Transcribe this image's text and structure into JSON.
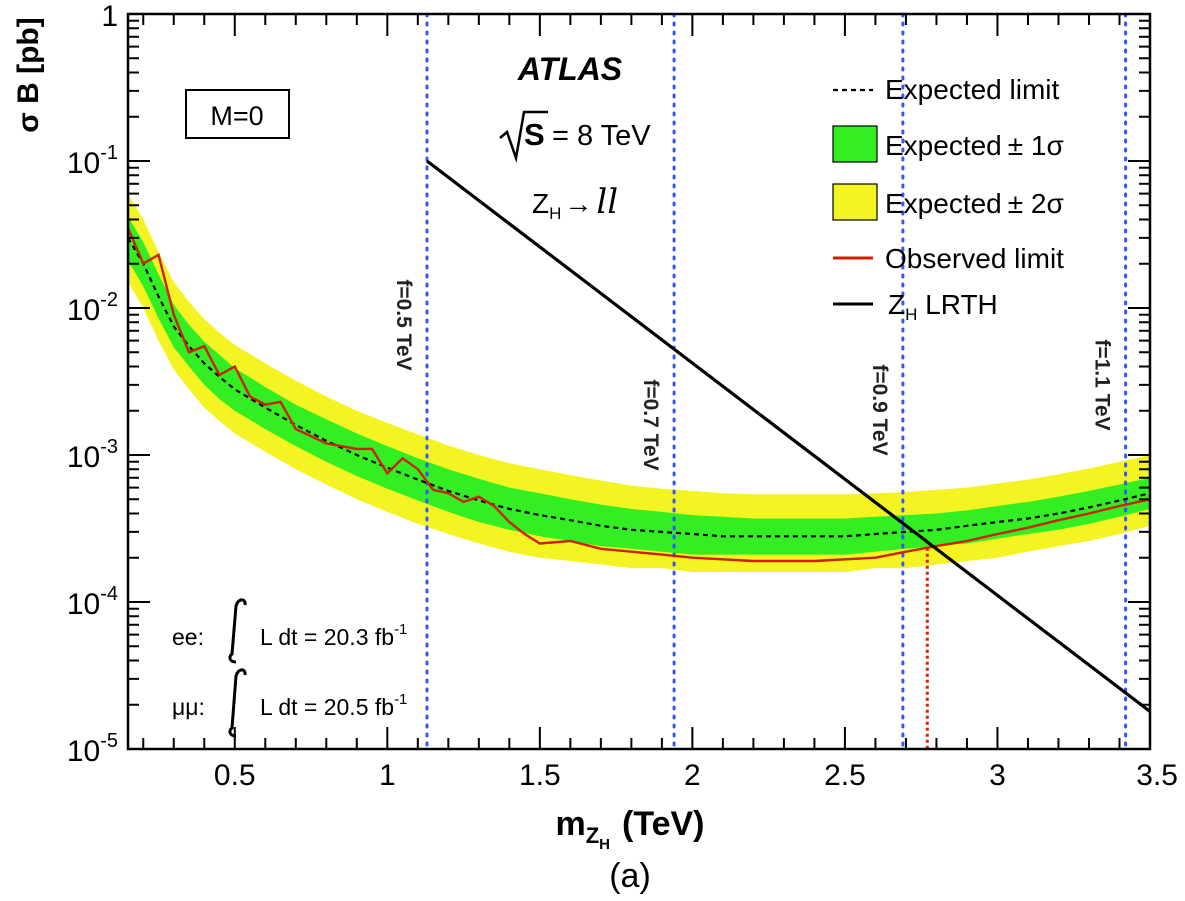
{
  "chart_data": {
    "type": "line",
    "title": "ATLAS",
    "energy_label": "S",
    "energy_value": "= 8 TeV",
    "process_prefix": "Z",
    "process_sub": "H",
    "process_arrow": "→",
    "process_final": "ll",
    "model_box": "M=0",
    "xlabel_main": "m",
    "xlabel_sub1": "Z",
    "xlabel_sub2": "H",
    "xlabel_unit": "(TeV)",
    "ylabel": "σ B [pb]",
    "caption": "(a)",
    "xlim": [
      0.15,
      3.5
    ],
    "ylim": [
      1e-05,
      1
    ],
    "x_ticks": [
      {
        "value": 0.5,
        "label": "0.5"
      },
      {
        "value": 1.0,
        "label": "1"
      },
      {
        "value": 1.5,
        "label": "1.5"
      },
      {
        "value": 2.0,
        "label": "2"
      },
      {
        "value": 2.5,
        "label": "2.5"
      },
      {
        "value": 3.0,
        "label": "3"
      },
      {
        "value": 3.5,
        "label": "3.5"
      }
    ],
    "y_ticks": [
      {
        "value": 1,
        "base": "1",
        "exp": ""
      },
      {
        "value": 0.1,
        "base": "10",
        "exp": "-1"
      },
      {
        "value": 0.01,
        "base": "10",
        "exp": "-2"
      },
      {
        "value": 0.001,
        "base": "10",
        "exp": "-3"
      },
      {
        "value": 0.0001,
        "base": "10",
        "exp": "-4"
      },
      {
        "value": 1e-05,
        "base": "10",
        "exp": "-5"
      }
    ],
    "legend": {
      "expected": "Expected limit",
      "one_sigma_word": "Expected",
      "one_sigma_tail": "± 1σ",
      "two_sigma_word": "Expected",
      "two_sigma_tail": "± 2σ",
      "observed": "Observed limit",
      "theory_prefix": "Z",
      "theory_sub": "H",
      "theory_tail": " LRTH"
    },
    "luminosity": {
      "ee_label": "ee:",
      "ee_text": "L dt = 20.3 fb",
      "ee_exp": "-1",
      "mumu_label": "μμ:",
      "mumu_text": "L dt = 20.5 fb",
      "mumu_exp": "-1"
    },
    "f_lines": [
      {
        "x": 1.13,
        "label": "f=0.5 TeV"
      },
      {
        "x": 1.94,
        "label": "f=0.7 TeV"
      },
      {
        "x": 2.69,
        "label": "f=0.9 TeV"
      },
      {
        "x": 3.42,
        "label": "f=1.1 TeV"
      }
    ],
    "observed_crossing_x": 2.77,
    "colors": {
      "one_sigma": "#33ee22",
      "two_sigma": "#f4f422",
      "observed": "#cc2200",
      "expected": "#000000",
      "theory": "#000000",
      "f_lines": "#3355ff",
      "crossing": "#dd2200"
    },
    "x": [
      0.15,
      0.2,
      0.25,
      0.3,
      0.35,
      0.4,
      0.45,
      0.5,
      0.6,
      0.7,
      0.8,
      0.9,
      1.0,
      1.1,
      1.2,
      1.3,
      1.4,
      1.5,
      1.6,
      1.7,
      1.8,
      1.9,
      2.0,
      2.1,
      2.2,
      2.3,
      2.4,
      2.5,
      2.6,
      2.7,
      2.8,
      2.9,
      3.0,
      3.1,
      3.2,
      3.3,
      3.4,
      3.5
    ],
    "series": [
      {
        "name": "Expected limit",
        "values": [
          0.03,
          0.02,
          0.012,
          0.0075,
          0.0055,
          0.0042,
          0.0034,
          0.0028,
          0.0021,
          0.0016,
          0.00125,
          0.001,
          0.00082,
          0.00068,
          0.00057,
          0.00049,
          0.00043,
          0.00039,
          0.00036,
          0.00033,
          0.00031,
          0.0003,
          0.00029,
          0.00028,
          0.00028,
          0.00028,
          0.00028,
          0.00028,
          0.00029,
          0.0003,
          0.00031,
          0.00033,
          0.00035,
          0.00037,
          0.0004,
          0.00044,
          0.00049,
          0.00055
        ]
      },
      {
        "name": "Expected ±1σ lower",
        "values": [
          0.021,
          0.014,
          0.0085,
          0.0054,
          0.004,
          0.003,
          0.0024,
          0.002,
          0.0015,
          0.00115,
          0.0009,
          0.00072,
          0.00059,
          0.00049,
          0.00041,
          0.00035,
          0.00031,
          0.00028,
          0.00026,
          0.00024,
          0.00023,
          0.00022,
          0.00021,
          0.00021,
          0.00021,
          0.00021,
          0.00021,
          0.00021,
          0.00022,
          0.00023,
          0.00024,
          0.00025,
          0.00027,
          0.00029,
          0.00031,
          0.00034,
          0.00038,
          0.00043
        ]
      },
      {
        "name": "Expected ±1σ upper",
        "values": [
          0.042,
          0.028,
          0.017,
          0.0105,
          0.0077,
          0.0059,
          0.0048,
          0.0039,
          0.0029,
          0.0022,
          0.00175,
          0.0014,
          0.00115,
          0.00095,
          0.0008,
          0.00069,
          0.0006,
          0.00055,
          0.0005,
          0.00046,
          0.00043,
          0.00041,
          0.00039,
          0.00038,
          0.00037,
          0.00037,
          0.00037,
          0.00037,
          0.00038,
          0.00039,
          0.0004,
          0.00042,
          0.00045,
          0.00048,
          0.00052,
          0.00057,
          0.00063,
          0.0007
        ]
      },
      {
        "name": "Expected ±2σ lower",
        "values": [
          0.015,
          0.01,
          0.006,
          0.0038,
          0.0028,
          0.0021,
          0.0017,
          0.0014,
          0.00105,
          0.0008,
          0.00063,
          0.0005,
          0.00041,
          0.00034,
          0.00029,
          0.00025,
          0.00022,
          0.0002,
          0.00019,
          0.00018,
          0.00017,
          0.00017,
          0.00016,
          0.00016,
          0.00016,
          0.00016,
          0.00016,
          0.00016,
          0.00017,
          0.00017,
          0.00018,
          0.00019,
          0.0002,
          0.00022,
          0.00024,
          0.00026,
          0.00029,
          0.00033
        ]
      },
      {
        "name": "Expected ±2σ upper",
        "values": [
          0.06,
          0.04,
          0.024,
          0.015,
          0.011,
          0.0084,
          0.0068,
          0.0056,
          0.0042,
          0.0032,
          0.0025,
          0.002,
          0.00165,
          0.00138,
          0.00116,
          0.001,
          0.00088,
          0.0008,
          0.00073,
          0.00067,
          0.00062,
          0.00059,
          0.00057,
          0.00055,
          0.00054,
          0.00054,
          0.00054,
          0.00054,
          0.00055,
          0.00056,
          0.00058,
          0.0006,
          0.00064,
          0.00068,
          0.00074,
          0.00081,
          0.0009,
          0.001
        ]
      },
      {
        "name": "Observed limit",
        "points": [
          [
            0.15,
            0.035
          ],
          [
            0.2,
            0.02
          ],
          [
            0.25,
            0.023
          ],
          [
            0.3,
            0.009
          ],
          [
            0.35,
            0.005
          ],
          [
            0.4,
            0.0055
          ],
          [
            0.45,
            0.0035
          ],
          [
            0.5,
            0.004
          ],
          [
            0.55,
            0.0025
          ],
          [
            0.6,
            0.0022
          ],
          [
            0.65,
            0.0023
          ],
          [
            0.7,
            0.0015
          ],
          [
            0.8,
            0.0012
          ],
          [
            0.9,
            0.0011
          ],
          [
            0.95,
            0.0011
          ],
          [
            1.0,
            0.00075
          ],
          [
            1.05,
            0.00095
          ],
          [
            1.1,
            0.0008
          ],
          [
            1.15,
            0.00058
          ],
          [
            1.2,
            0.00055
          ],
          [
            1.25,
            0.00048
          ],
          [
            1.3,
            0.00052
          ],
          [
            1.35,
            0.00045
          ],
          [
            1.4,
            0.00035
          ],
          [
            1.45,
            0.00029
          ],
          [
            1.5,
            0.00025
          ],
          [
            1.6,
            0.00026
          ],
          [
            1.7,
            0.00023
          ],
          [
            1.8,
            0.00022
          ],
          [
            1.9,
            0.00021
          ],
          [
            2.0,
            0.0002
          ],
          [
            2.2,
            0.00019
          ],
          [
            2.4,
            0.00019
          ],
          [
            2.6,
            0.0002
          ],
          [
            2.7,
            0.00022
          ],
          [
            2.8,
            0.00024
          ],
          [
            2.9,
            0.00026
          ],
          [
            3.0,
            0.00029
          ],
          [
            3.1,
            0.00032
          ],
          [
            3.2,
            0.00036
          ],
          [
            3.3,
            0.0004
          ],
          [
            3.4,
            0.00045
          ],
          [
            3.5,
            0.0005
          ]
        ]
      },
      {
        "name": "Z_H LRTH",
        "points": [
          [
            1.13,
            0.1
          ],
          [
            3.5,
            1.8e-05
          ]
        ]
      }
    ]
  }
}
